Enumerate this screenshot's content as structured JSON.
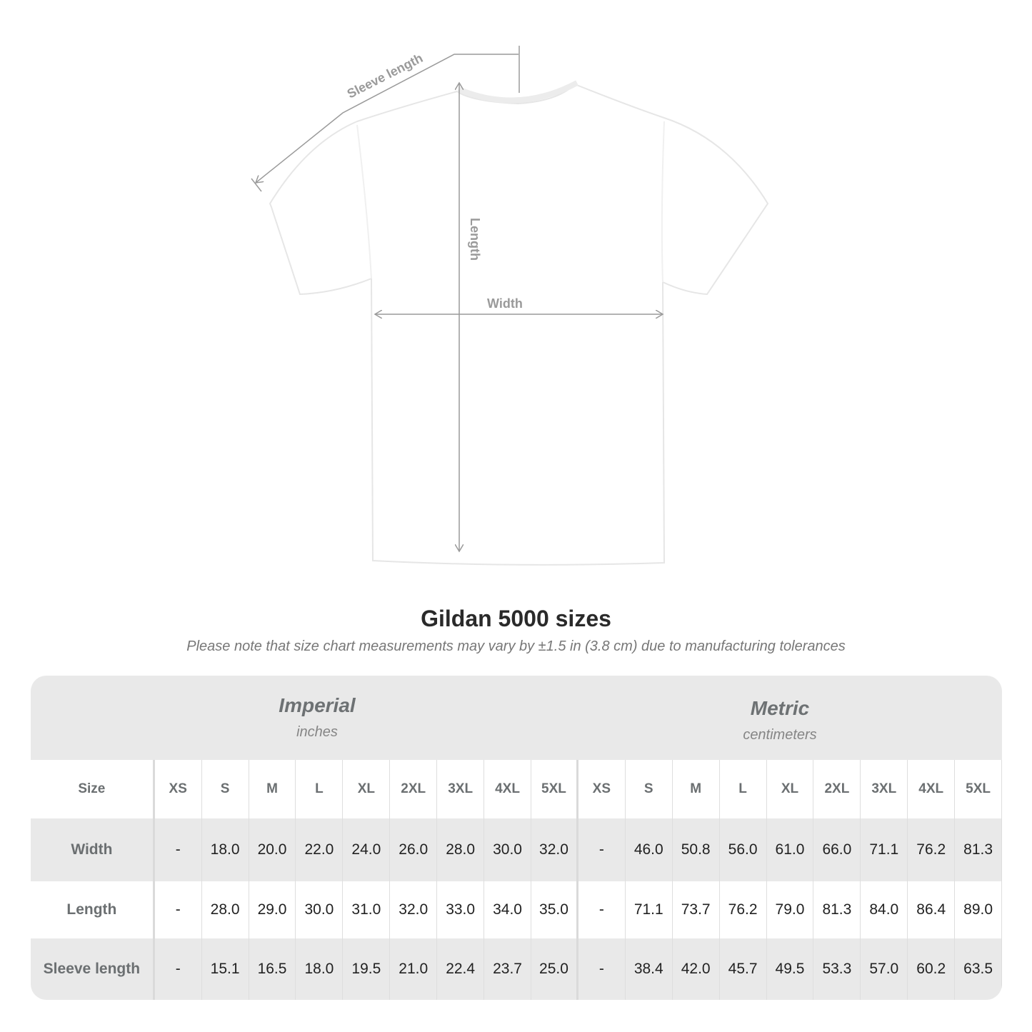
{
  "diagram": {
    "labels": {
      "sleeve": "Sleeve length",
      "length": "Length",
      "width": "Width"
    },
    "shirt_color": "#ffffff",
    "line_color": "#9a9a9a"
  },
  "title": "Gildan 5000 sizes",
  "note": "Please note that size chart measurements may vary by ±1.5 in (3.8 cm) due to manufacturing tolerances",
  "table": {
    "imperial": {
      "name": "Imperial",
      "unit": "inches"
    },
    "metric": {
      "name": "Metric",
      "unit": "centimeters"
    },
    "size_label": "Size",
    "sizes": [
      "XS",
      "S",
      "M",
      "L",
      "XL",
      "2XL",
      "3XL",
      "4XL",
      "5XL"
    ],
    "rows": [
      {
        "label": "Width",
        "imperial": [
          "-",
          "18.0",
          "20.0",
          "22.0",
          "24.0",
          "26.0",
          "28.0",
          "30.0",
          "32.0"
        ],
        "metric": [
          "-",
          "46.0",
          "50.8",
          "56.0",
          "61.0",
          "66.0",
          "71.1",
          "76.2",
          "81.3"
        ]
      },
      {
        "label": "Length",
        "imperial": [
          "-",
          "28.0",
          "29.0",
          "30.0",
          "31.0",
          "32.0",
          "33.0",
          "34.0",
          "35.0"
        ],
        "metric": [
          "-",
          "71.1",
          "73.7",
          "76.2",
          "79.0",
          "81.3",
          "84.0",
          "86.4",
          "89.0"
        ]
      },
      {
        "label": "Sleeve length",
        "imperial": [
          "-",
          "15.1",
          "16.5",
          "18.0",
          "19.5",
          "21.0",
          "22.4",
          "23.7",
          "25.0"
        ],
        "metric": [
          "-",
          "38.4",
          "42.0",
          "45.7",
          "49.5",
          "53.3",
          "57.0",
          "60.2",
          "63.5"
        ]
      }
    ]
  }
}
